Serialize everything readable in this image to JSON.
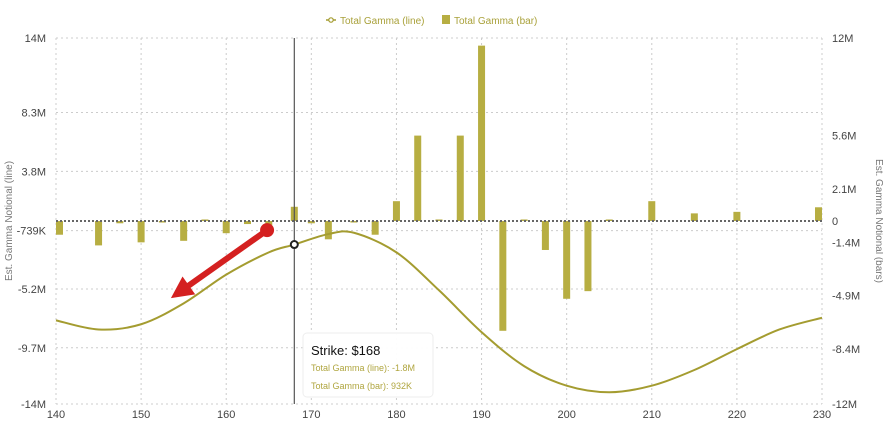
{
  "chart_data": {
    "type": "bar+line",
    "title": "",
    "legend": {
      "placement": "top-center",
      "items": [
        {
          "label": "Total Gamma (line)",
          "marker": "line"
        },
        {
          "label": "Total Gamma (bar)",
          "marker": "bar"
        }
      ]
    },
    "xlabel": "",
    "xlim": [
      140,
      230
    ],
    "x_ticks": [
      "140",
      "150",
      "160",
      "170",
      "180",
      "190",
      "200",
      "210",
      "220",
      "230"
    ],
    "y_left": {
      "label": "Est. Gamma Notional (line)",
      "ylim": [
        -14,
        14
      ],
      "ticks": [
        {
          "value": 14,
          "label": "14M"
        },
        {
          "value": 8.3,
          "label": "8.3M"
        },
        {
          "value": 3.8,
          "label": "3.8M"
        },
        {
          "value": -0.739,
          "label": "-739K"
        },
        {
          "value": -5.2,
          "label": "-5.2M"
        },
        {
          "value": -9.7,
          "label": "-9.7M"
        },
        {
          "value": -14,
          "label": "-14M"
        }
      ]
    },
    "y_right": {
      "label": "Est. Gamma Notional (bars)",
      "ylim": [
        -12,
        12
      ],
      "ticks": [
        {
          "value": 12,
          "label": "12M"
        },
        {
          "value": 5.6,
          "label": "5.6M"
        },
        {
          "value": 2.1,
          "label": "2.1M"
        },
        {
          "value": 0,
          "label": "0"
        },
        {
          "value": -1.4,
          "label": "-1.4M"
        },
        {
          "value": -4.9,
          "label": "-4.9M"
        },
        {
          "value": -8.4,
          "label": "-8.4M"
        },
        {
          "value": -12,
          "label": "-12M"
        }
      ]
    },
    "grid": true,
    "colors": {
      "series": "#b7ae42",
      "series_line": "#a49c30",
      "zero_line": "#666666",
      "crosshair": "#555555",
      "arrow": "#d42020",
      "grid": "#cccccc"
    },
    "series": [
      {
        "name": "Total Gamma (bar)",
        "axis": "right",
        "type": "bar",
        "points": [
          {
            "x": 140,
            "y": -0.9
          },
          {
            "x": 145,
            "y": -1.6
          },
          {
            "x": 147.5,
            "y": -0.15
          },
          {
            "x": 150,
            "y": -1.4
          },
          {
            "x": 152.5,
            "y": -0.1
          },
          {
            "x": 155,
            "y": -1.3
          },
          {
            "x": 157.5,
            "y": 0.1
          },
          {
            "x": 160,
            "y": -0.8
          },
          {
            "x": 162.5,
            "y": -0.2
          },
          {
            "x": 165,
            "y": -0.3
          },
          {
            "x": 168,
            "y": 0.932
          },
          {
            "x": 170,
            "y": -0.15
          },
          {
            "x": 172,
            "y": -1.2
          },
          {
            "x": 175,
            "y": -0.1
          },
          {
            "x": 177.5,
            "y": -0.9
          },
          {
            "x": 180,
            "y": 1.3
          },
          {
            "x": 182.5,
            "y": 5.6
          },
          {
            "x": 185,
            "y": 0.1
          },
          {
            "x": 187.5,
            "y": 5.6
          },
          {
            "x": 190,
            "y": 11.5
          },
          {
            "x": 192.5,
            "y": -7.2
          },
          {
            "x": 195,
            "y": 0.1
          },
          {
            "x": 197.5,
            "y": -1.9
          },
          {
            "x": 200,
            "y": -5.1
          },
          {
            "x": 202.5,
            "y": -4.6
          },
          {
            "x": 205,
            "y": 0.1
          },
          {
            "x": 210,
            "y": 1.3
          },
          {
            "x": 215,
            "y": 0.5
          },
          {
            "x": 220,
            "y": 0.6
          },
          {
            "x": 230,
            "y": 0.9
          }
        ]
      },
      {
        "name": "Total Gamma (line)",
        "axis": "left",
        "type": "line",
        "points": [
          {
            "x": 140,
            "y": -7.6
          },
          {
            "x": 145,
            "y": -8.3
          },
          {
            "x": 150,
            "y": -7.9
          },
          {
            "x": 155,
            "y": -6.3
          },
          {
            "x": 160,
            "y": -4.1
          },
          {
            "x": 165,
            "y": -2.4
          },
          {
            "x": 168,
            "y": -1.8
          },
          {
            "x": 172,
            "y": -1.0
          },
          {
            "x": 175,
            "y": -0.9
          },
          {
            "x": 180,
            "y": -2.4
          },
          {
            "x": 185,
            "y": -5.3
          },
          {
            "x": 190,
            "y": -8.5
          },
          {
            "x": 195,
            "y": -11.1
          },
          {
            "x": 200,
            "y": -12.6
          },
          {
            "x": 205,
            "y": -13.1
          },
          {
            "x": 210,
            "y": -12.6
          },
          {
            "x": 215,
            "y": -11.4
          },
          {
            "x": 220,
            "y": -9.8
          },
          {
            "x": 225,
            "y": -8.3
          },
          {
            "x": 230,
            "y": -7.4
          }
        ]
      }
    ],
    "crosshair": {
      "x": 168,
      "marker_value": -1.8
    },
    "tooltip": {
      "title": "Strike: $168",
      "lines": [
        "Total Gamma (line): -1.8M",
        "Total Gamma (bar): 932K"
      ]
    },
    "annotation": {
      "type": "arrow",
      "color": "red",
      "from": {
        "x": 164.8,
        "y": -0.7
      },
      "to": {
        "x": 153.5,
        "y": -5.9
      }
    }
  }
}
